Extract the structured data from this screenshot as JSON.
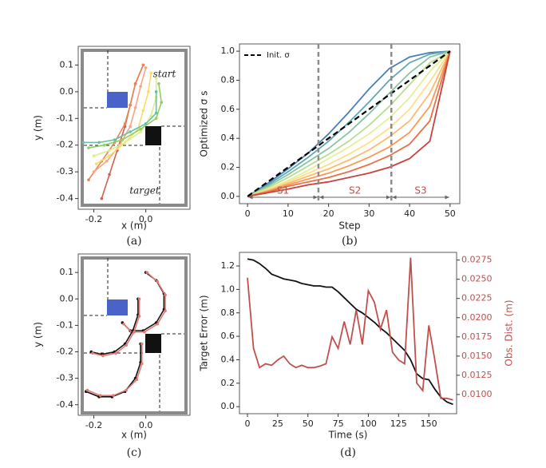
{
  "chart_data": [
    {
      "type": "trajectory",
      "xlabel": "x (m)",
      "ylabel": "y (m)",
      "caption": "(a)",
      "annotations": [
        "start",
        "target"
      ],
      "xlim": [
        -0.26,
        0.17
      ],
      "ylim": [
        -0.44,
        0.17
      ],
      "xticks": [
        -0.2,
        {
          "value": 0,
          "label": "0.0"
        }
      ],
      "yticks": [
        0.1,
        {
          "value": 0,
          "label": "0.0"
        },
        -0.1,
        -0.2,
        -0.3,
        -0.4
      ],
      "series": [
        {
          "color": "#d6604d",
          "x": [
            -0.01,
            -0.04,
            -0.06,
            -0.08,
            -0.11,
            -0.14,
            -0.17
          ],
          "values": [
            0.1,
            0.03,
            -0.05,
            -0.13,
            -0.22,
            -0.31,
            -0.4
          ]
        },
        {
          "color": "#e8845a",
          "x": [
            -0.01,
            -0.04,
            -0.06,
            -0.08,
            -0.12,
            -0.17,
            -0.22
          ],
          "values": [
            0.1,
            0.03,
            -0.05,
            -0.12,
            -0.19,
            -0.26,
            -0.33
          ]
        },
        {
          "color": "#f4a582",
          "x": [
            0.0,
            -0.02,
            -0.04,
            -0.06,
            -0.1,
            -0.15,
            -0.2
          ],
          "values": [
            0.09,
            0.02,
            -0.06,
            -0.13,
            -0.2,
            -0.26,
            -0.3
          ]
        },
        {
          "color": "#fdd96b",
          "x": [
            0.02,
            0.01,
            -0.01,
            -0.03,
            -0.08,
            -0.14,
            -0.19
          ],
          "values": [
            0.07,
            0.0,
            -0.07,
            -0.14,
            -0.19,
            -0.24,
            -0.27
          ]
        },
        {
          "color": "#d9ef8b",
          "x": [
            0.04,
            0.04,
            0.02,
            -0.02,
            -0.08,
            -0.14,
            -0.2
          ],
          "values": [
            0.05,
            -0.02,
            -0.09,
            -0.15,
            -0.19,
            -0.22,
            -0.24
          ]
        },
        {
          "color": "#91cf60",
          "x": [
            0.05,
            0.06,
            0.04,
            -0.02,
            -0.09,
            -0.16,
            -0.22
          ],
          "values": [
            0.03,
            -0.04,
            -0.1,
            -0.14,
            -0.18,
            -0.2,
            -0.21
          ]
        },
        {
          "color": "#66c2a5",
          "x": [
            0.04,
            0.04,
            0.0,
            -0.06,
            -0.12,
            -0.18,
            -0.24
          ],
          "values": [
            0.0,
            -0.08,
            -0.12,
            -0.15,
            -0.18,
            -0.19,
            -0.19
          ]
        }
      ]
    },
    {
      "type": "line",
      "xlabel": "Step",
      "ylabel": "Optimized σ s",
      "caption": "(b)",
      "xlim": [
        -2,
        52.4
      ],
      "ylim": [
        -0.05,
        1.05
      ],
      "xticks": [
        0,
        10,
        20,
        30,
        40,
        50
      ],
      "yticks": [
        {
          "value": 0,
          "label": "0.0"
        },
        0.2,
        0.4,
        0.6,
        0.8,
        {
          "value": 1,
          "label": "1.0"
        }
      ],
      "legend": "upper left",
      "vlines": [
        17.5,
        35.5
      ],
      "vline_color": "#8c8c8c",
      "segments": [
        "S1",
        "S2",
        "S3"
      ],
      "segment_color": "#c0504d",
      "x": [
        0,
        5,
        10,
        15,
        20,
        25,
        30,
        35,
        40,
        45,
        50
      ],
      "series": [
        {
          "color": "#4a7fb5",
          "values": [
            0,
            0.09,
            0.19,
            0.3,
            0.43,
            0.58,
            0.74,
            0.88,
            0.96,
            0.99,
            1.0
          ]
        },
        {
          "color": "#5fa8b3",
          "values": [
            0,
            0.08,
            0.17,
            0.27,
            0.38,
            0.51,
            0.65,
            0.8,
            0.92,
            0.98,
            1.0
          ]
        },
        {
          "color": "#86c5a0",
          "values": [
            0,
            0.07,
            0.15,
            0.24,
            0.33,
            0.44,
            0.57,
            0.71,
            0.85,
            0.96,
            1.0
          ]
        },
        {
          "color": "#b7dd95",
          "values": [
            0,
            0.06,
            0.13,
            0.21,
            0.29,
            0.38,
            0.49,
            0.62,
            0.77,
            0.92,
            1.0
          ]
        },
        {
          "color": "#e3ef9a",
          "values": [
            0,
            0.05,
            0.11,
            0.18,
            0.26,
            0.34,
            0.43,
            0.54,
            0.68,
            0.86,
            1.0
          ]
        },
        {
          "color": "#fde089",
          "values": [
            0,
            0.045,
            0.1,
            0.16,
            0.22,
            0.29,
            0.37,
            0.47,
            0.6,
            0.79,
            1.0
          ]
        },
        {
          "color": "#fdbb6c",
          "values": [
            0,
            0.04,
            0.09,
            0.14,
            0.19,
            0.25,
            0.32,
            0.41,
            0.52,
            0.71,
            1.0
          ]
        },
        {
          "color": "#f89a55",
          "values": [
            0,
            0.035,
            0.08,
            0.12,
            0.16,
            0.21,
            0.27,
            0.34,
            0.44,
            0.62,
            1.0
          ]
        },
        {
          "color": "#e8704a",
          "values": [
            0,
            0.03,
            0.07,
            0.1,
            0.13,
            0.17,
            0.22,
            0.28,
            0.36,
            0.52,
            1.0
          ]
        },
        {
          "color": "#c8433b",
          "values": [
            0,
            0.025,
            0.05,
            0.08,
            0.1,
            0.13,
            0.16,
            0.2,
            0.26,
            0.38,
            1.0
          ]
        },
        {
          "name": "Init. σ",
          "color": "#000000",
          "linestyle": "dashed",
          "values": [
            0,
            0.1,
            0.2,
            0.3,
            0.4,
            0.5,
            0.6,
            0.7,
            0.8,
            0.9,
            1.0
          ]
        }
      ]
    },
    {
      "type": "trajectory",
      "xlabel": "x (m)",
      "ylabel": "y (m)",
      "caption": "(c)",
      "xlim": [
        -0.26,
        0.17
      ],
      "ylim": [
        -0.44,
        0.17
      ],
      "xticks": [
        -0.2,
        {
          "value": 0,
          "label": "0.0"
        }
      ],
      "yticks": [
        0.1,
        {
          "value": 0,
          "label": "0.0"
        },
        -0.1,
        -0.2,
        -0.3,
        -0.4
      ],
      "series": [
        {
          "color": "#111111",
          "x": [
            0.0,
            0.04,
            0.07,
            0.07,
            0.04,
            -0.01,
            -0.06,
            -0.09
          ],
          "values": [
            0.1,
            0.07,
            0.02,
            -0.04,
            -0.09,
            -0.12,
            -0.12,
            -0.09
          ]
        },
        {
          "color": "#e07b72",
          "x": [
            0.005,
            0.045,
            0.075,
            0.075,
            0.045,
            -0.005,
            -0.055,
            -0.085
          ],
          "values": [
            0.1,
            0.065,
            0.015,
            -0.045,
            -0.095,
            -0.125,
            -0.125,
            -0.095
          ]
        },
        {
          "color": "#111111",
          "x": [
            -0.03,
            -0.03,
            -0.05,
            -0.08,
            -0.12,
            -0.17,
            -0.21
          ],
          "values": [
            0.0,
            -0.06,
            -0.12,
            -0.17,
            -0.2,
            -0.21,
            -0.2
          ]
        },
        {
          "color": "#e07b72",
          "x": [
            -0.025,
            -0.025,
            -0.045,
            -0.075,
            -0.115,
            -0.165,
            -0.205
          ],
          "values": [
            0.0,
            -0.065,
            -0.125,
            -0.175,
            -0.205,
            -0.215,
            -0.205
          ]
        },
        {
          "color": "#111111",
          "x": [
            -0.02,
            -0.02,
            -0.04,
            -0.08,
            -0.13,
            -0.18,
            -0.23
          ],
          "values": [
            -0.17,
            -0.24,
            -0.3,
            -0.35,
            -0.37,
            -0.37,
            -0.35
          ]
        },
        {
          "color": "#e07b72",
          "x": [
            -0.015,
            -0.015,
            -0.035,
            -0.075,
            -0.125,
            -0.175,
            -0.225
          ],
          "values": [
            -0.17,
            -0.245,
            -0.305,
            -0.345,
            -0.365,
            -0.365,
            -0.345
          ]
        }
      ]
    },
    {
      "type": "line",
      "xlabel": "Time (s)",
      "ylabel": "Target Error (m)",
      "y2label": "Obs. Dist. (m)",
      "caption": "(d)",
      "xlim": [
        -6.6,
        173
      ],
      "ylim": [
        -0.06,
        1.316
      ],
      "y2lim": [
        0.0075,
        0.0285
      ],
      "xticks": [
        0,
        25,
        50,
        75,
        100,
        125,
        150
      ],
      "yticks": [
        {
          "value": 0,
          "label": "0.0"
        },
        0.2,
        0.4,
        0.6,
        0.8,
        {
          "value": 1,
          "label": "1.0"
        },
        1.2
      ],
      "y2ticks": [
        {
          "value": 0.01,
          "label": "0.0100"
        },
        0.0125,
        {
          "value": 0.015,
          "label": "0.0150"
        },
        0.0175,
        {
          "value": 0.02,
          "label": "0.0200"
        },
        0.0225,
        {
          "value": 0.025,
          "label": "0.0250"
        },
        0.0275
      ],
      "x": [
        0,
        5,
        10,
        15,
        20,
        25,
        30,
        35,
        40,
        45,
        50,
        55,
        60,
        65,
        70,
        75,
        80,
        85,
        90,
        95,
        100,
        105,
        110,
        115,
        120,
        125,
        130,
        135,
        140,
        145,
        150,
        155,
        160,
        165,
        170
      ],
      "series": [
        {
          "color": "#111111",
          "values": [
            1.26,
            1.25,
            1.22,
            1.18,
            1.13,
            1.11,
            1.09,
            1.08,
            1.07,
            1.05,
            1.04,
            1.03,
            1.03,
            1.02,
            1.02,
            0.98,
            0.93,
            0.88,
            0.83,
            0.8,
            0.76,
            0.72,
            0.67,
            0.63,
            0.58,
            0.53,
            0.48,
            0.4,
            0.28,
            0.24,
            0.23,
            0.15,
            0.08,
            0.04,
            0.02
          ]
        },
        {
          "color": "#c0504d",
          "axis": "y2",
          "values": [
            0.0252,
            0.016,
            0.0135,
            0.014,
            0.0138,
            0.0145,
            0.015,
            0.014,
            0.0135,
            0.0138,
            0.0135,
            0.0135,
            0.0137,
            0.014,
            0.0175,
            0.016,
            0.0195,
            0.0165,
            0.021,
            0.0165,
            0.0235,
            0.022,
            0.0185,
            0.021,
            0.0155,
            0.0145,
            0.014,
            0.0278,
            0.0115,
            0.0105,
            0.019,
            0.0145,
            0.0095,
            0.0095,
            0.0093
          ]
        }
      ]
    }
  ]
}
